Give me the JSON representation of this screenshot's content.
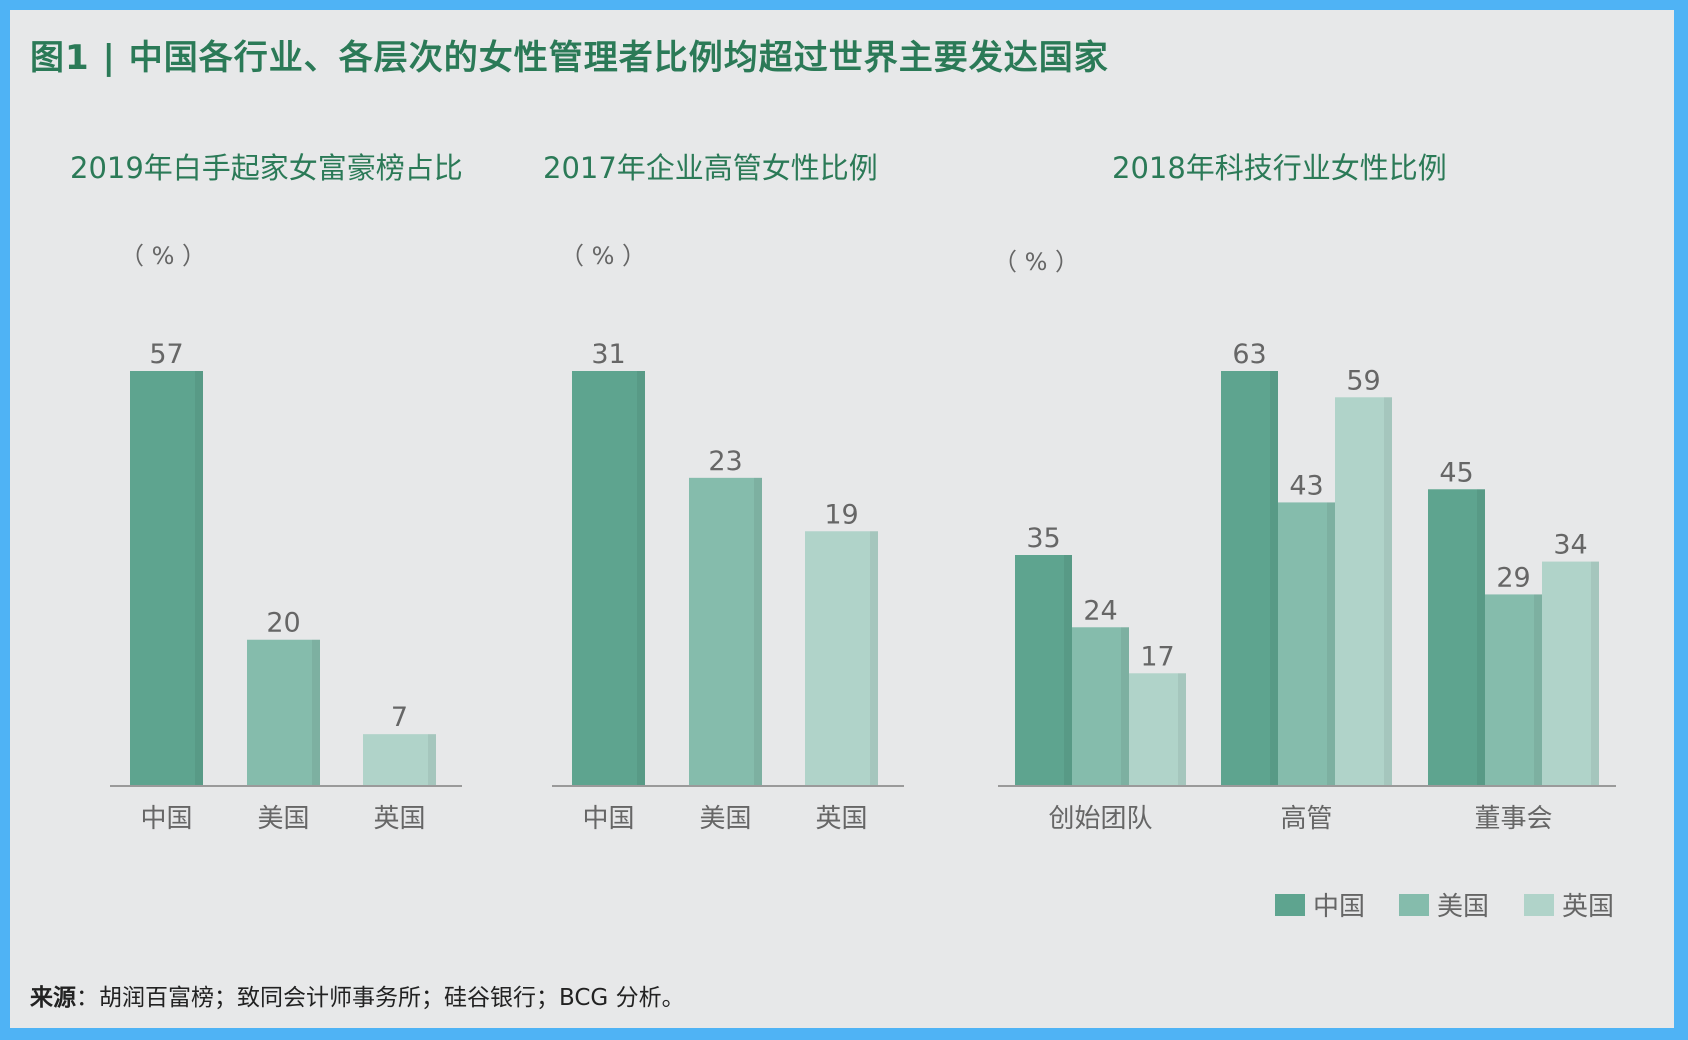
{
  "figure_title": "图1 | 中国各行业、各层次的女性管理者比例均超过世界主要发达国家",
  "colors": {
    "china": "#5ea48f",
    "usa": "#85bcac",
    "uk": "#b0d3c9",
    "title": "#2b7a57",
    "axis": "#9a9a9a",
    "label": "#666666"
  },
  "source": {
    "label": "来源",
    "text": "：胡润百富榜；致同会计师事务所；硅谷银行；BCG 分析。"
  },
  "chart_data": [
    {
      "type": "bar",
      "title": "2019年白手起家女富豪榜占比",
      "unit": "（ % ）",
      "categories": [
        "中国",
        "美国",
        "英国"
      ],
      "values": [
        57,
        20,
        7
      ],
      "ylim": [
        0,
        57
      ]
    },
    {
      "type": "bar",
      "title": "2017年企业高管女性比例",
      "unit": "（ % ）",
      "categories": [
        "中国",
        "美国",
        "英国"
      ],
      "values": [
        31,
        23,
        19
      ],
      "ylim": [
        0,
        31
      ]
    },
    {
      "type": "bar",
      "title": "2018年科技行业女性比例",
      "unit": "（ % ）",
      "categories": [
        "创始团队",
        "高管",
        "董事会"
      ],
      "series": [
        {
          "name": "中国",
          "values": [
            35,
            63,
            45
          ]
        },
        {
          "name": "美国",
          "values": [
            24,
            43,
            29
          ]
        },
        {
          "name": "英国",
          "values": [
            17,
            59,
            34
          ]
        }
      ],
      "ylim": [
        0,
        63
      ],
      "legend": {
        "position": "bottom-right",
        "items": [
          "中国",
          "美国",
          "英国"
        ]
      }
    }
  ]
}
